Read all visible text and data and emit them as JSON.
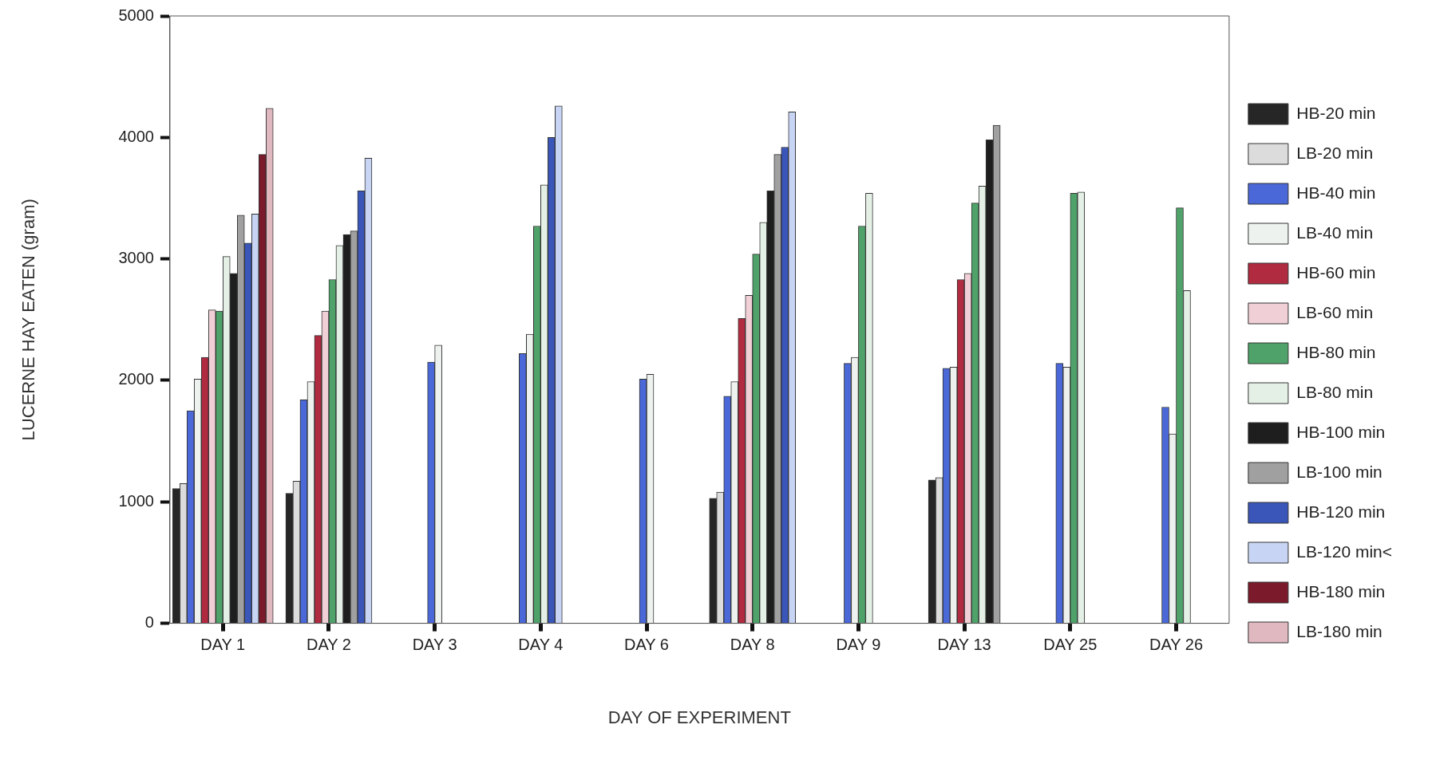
{
  "chart_data": {
    "type": "bar",
    "xlabel": "DAY OF EXPERIMENT",
    "ylabel": "LUCERNE HAY EATEN (gram)",
    "categories": [
      "DAY 1",
      "DAY 2",
      "DAY 3",
      "DAY 4",
      "DAY 6",
      "DAY 8",
      "DAY 9",
      "DAY 13",
      "DAY 25",
      "DAY 26"
    ],
    "series": [
      {
        "name": "HB-20 min",
        "color": "#262626",
        "values": [
          1110,
          1070,
          null,
          null,
          null,
          1030,
          null,
          1180,
          null,
          null
        ]
      },
      {
        "name": "LB-20 min",
        "color": "#dcdcdc",
        "values": [
          1150,
          1170,
          null,
          null,
          null,
          1080,
          null,
          1200,
          null,
          null
        ]
      },
      {
        "name": "HB-40 min",
        "color": "#4a68d8",
        "values": [
          1750,
          1840,
          2150,
          2220,
          2010,
          1870,
          2140,
          2100,
          2140,
          1780
        ]
      },
      {
        "name": "LB-40 min",
        "color": "#eef2ee",
        "values": [
          2010,
          1990,
          2290,
          2380,
          2050,
          1990,
          2190,
          2110,
          2110,
          1560
        ]
      },
      {
        "name": "HB-60 min",
        "color": "#b02a40",
        "values": [
          2190,
          2370,
          null,
          null,
          null,
          2510,
          null,
          2830,
          null,
          null
        ]
      },
      {
        "name": "LB-60 min",
        "color": "#f0d0d6",
        "values": [
          2580,
          2570,
          null,
          null,
          null,
          2700,
          null,
          2880,
          null,
          null
        ]
      },
      {
        "name": "HB-80 min",
        "color": "#4fa36a",
        "values": [
          2570,
          2830,
          null,
          3270,
          null,
          3040,
          3270,
          3460,
          3540,
          3420
        ]
      },
      {
        "name": "LB-80 min",
        "color": "#e4f0e6",
        "values": [
          3020,
          3110,
          null,
          3610,
          null,
          3300,
          3540,
          3600,
          3550,
          2740
        ]
      },
      {
        "name": "HB-100 min",
        "color": "#1e1e1e",
        "values": [
          2880,
          3200,
          null,
          null,
          null,
          3560,
          null,
          3980,
          null,
          null
        ]
      },
      {
        "name": "LB-100 min",
        "color": "#a0a0a0",
        "values": [
          3360,
          3230,
          null,
          null,
          null,
          3860,
          null,
          4100,
          null,
          null
        ]
      },
      {
        "name": "HB-120 min",
        "color": "#3a56b8",
        "values": [
          3130,
          3560,
          null,
          4000,
          null,
          3920,
          null,
          null,
          null,
          null
        ]
      },
      {
        "name": "LB-120 min<",
        "color": "#c8d4f4",
        "values": [
          3370,
          3830,
          null,
          4260,
          null,
          4210,
          null,
          null,
          null,
          null
        ]
      },
      {
        "name": "HB-180 min",
        "color": "#7a1a2a",
        "values": [
          3860,
          null,
          null,
          null,
          null,
          null,
          null,
          null,
          null,
          null
        ]
      },
      {
        "name": "LB-180 min",
        "color": "#e0b8c0",
        "values": [
          4240,
          null,
          null,
          null,
          null,
          null,
          null,
          null,
          null,
          null
        ]
      }
    ],
    "ylim": [
      0,
      5000
    ],
    "yticks": [
      0,
      1000,
      2000,
      3000,
      4000,
      5000
    ],
    "grid": false,
    "legend": "right"
  }
}
